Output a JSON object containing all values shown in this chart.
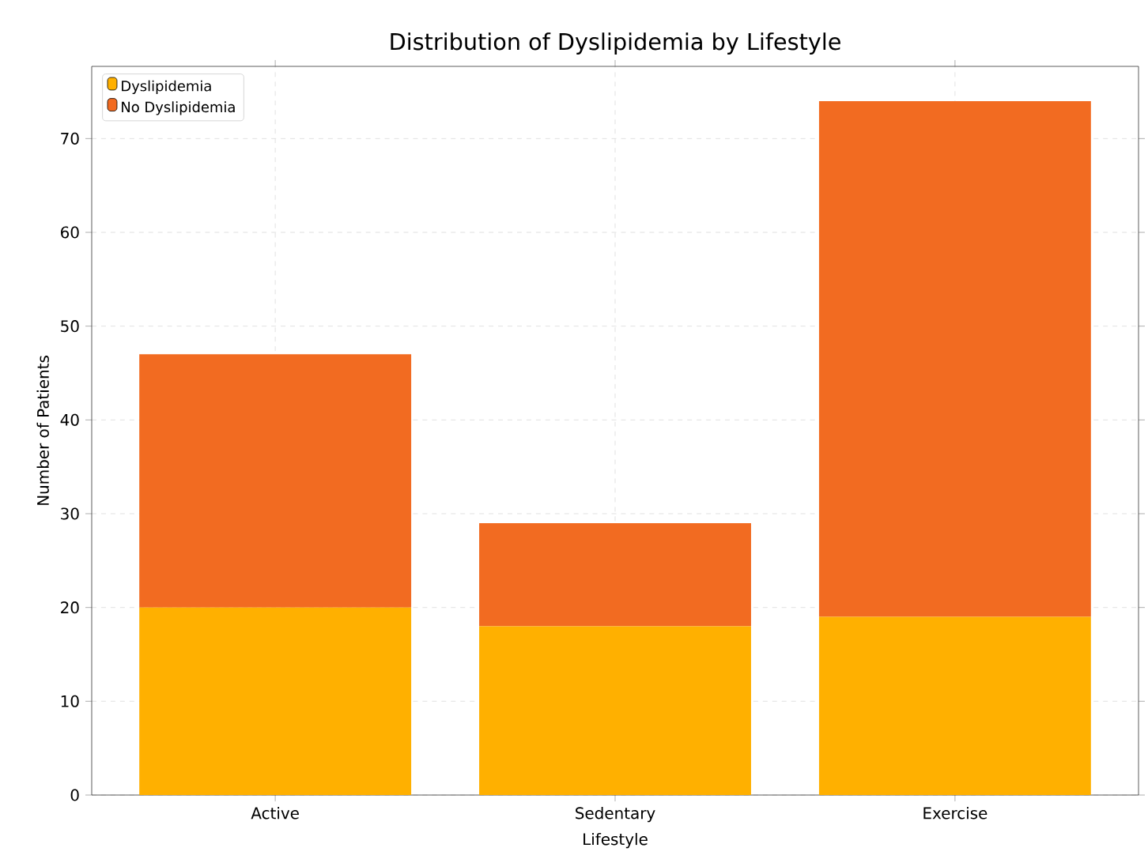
{
  "chart_data": {
    "type": "bar",
    "title": "Distribution of Dyslipidemia by Lifestyle",
    "xlabel": "Lifestyle",
    "ylabel": "Number of Patients",
    "categories": [
      "Active",
      "Sedentary",
      "Exercise"
    ],
    "series": [
      {
        "name": "Dyslipidemia",
        "color": "#ffb000",
        "values": [
          20,
          18,
          19
        ]
      },
      {
        "name": "No Dyslipidemia",
        "color": "#f26b21",
        "values": [
          27,
          11,
          55
        ]
      }
    ],
    "stacked": true,
    "ylim": [
      0,
      77.7
    ],
    "yticks": [
      0,
      10,
      20,
      30,
      40,
      50,
      60,
      70
    ],
    "grid": true,
    "legend": "top left"
  }
}
